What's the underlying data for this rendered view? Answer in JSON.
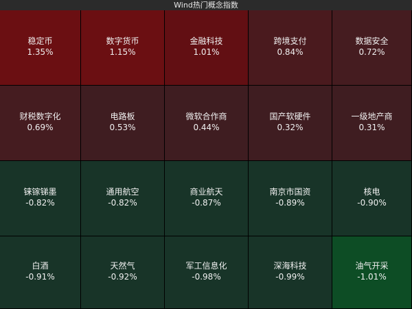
{
  "header": {
    "title": "Wind热门概念指数"
  },
  "tiles": [
    {
      "name": "稳定币",
      "change": "1.35%",
      "color": "#6b0f12"
    },
    {
      "name": "数字货币",
      "change": "1.15%",
      "color": "#6b0f12"
    },
    {
      "name": "金融科技",
      "change": "1.01%",
      "color": "#620f13"
    },
    {
      "name": "跨境支付",
      "change": "0.84%",
      "color": "#4a1a1e"
    },
    {
      "name": "数据安全",
      "change": "0.72%",
      "color": "#451c20"
    },
    {
      "name": "财税数字化",
      "change": "0.69%",
      "color": "#451c20"
    },
    {
      "name": "电路板",
      "change": "0.53%",
      "color": "#3f1d21"
    },
    {
      "name": "微软合作商",
      "change": "0.44%",
      "color": "#3f1d21"
    },
    {
      "name": "国产软硬件",
      "change": "0.32%",
      "color": "#3f1d21"
    },
    {
      "name": "一级地产商",
      "change": "0.31%",
      "color": "#3f1d21"
    },
    {
      "name": "铼镓锑墨",
      "change": "-0.82%",
      "color": "#183428"
    },
    {
      "name": "通用航空",
      "change": "-0.82%",
      "color": "#183428"
    },
    {
      "name": "商业航天",
      "change": "-0.87%",
      "color": "#183428"
    },
    {
      "name": "南京市国资",
      "change": "-0.89%",
      "color": "#183428"
    },
    {
      "name": "核电",
      "change": "-0.90%",
      "color": "#183428"
    },
    {
      "name": "白酒",
      "change": "-0.91%",
      "color": "#183428"
    },
    {
      "name": "天然气",
      "change": "-0.92%",
      "color": "#183428"
    },
    {
      "name": "军工信息化",
      "change": "-0.98%",
      "color": "#183428"
    },
    {
      "name": "深海科技",
      "change": "-0.99%",
      "color": "#183428"
    },
    {
      "name": "油气开采",
      "change": "-1.01%",
      "color": "#0d4d25"
    }
  ]
}
